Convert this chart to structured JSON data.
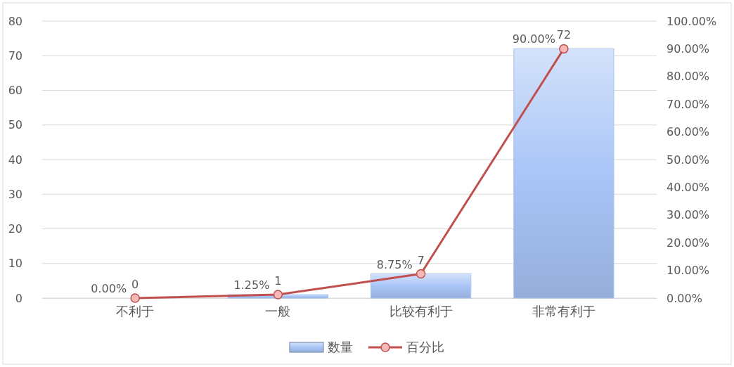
{
  "chart_data": {
    "type": "bar",
    "categories": [
      "不利于",
      "一般",
      "比较有利于",
      "非常有利于"
    ],
    "series": [
      {
        "name": "数量",
        "color": "#a9c5f7",
        "values": [
          0,
          1,
          7,
          72
        ],
        "value_labels": [
          "0",
          "1",
          "7",
          "72"
        ]
      },
      {
        "name": "百分比",
        "type": "line",
        "axis": "y2",
        "color": "#c0504d",
        "values": [
          0,
          1.25,
          8.75,
          90
        ],
        "value_labels": [
          "0.00%",
          "1.25%",
          "8.75%",
          "90.00%"
        ],
        "marker": "circle"
      }
    ],
    "ylim": [
      0,
      80
    ],
    "yticks": [
      0,
      10,
      20,
      30,
      40,
      50,
      60,
      70,
      80
    ],
    "y2lim": [
      0,
      100
    ],
    "y2ticks": [
      {
        "value": 0,
        "label": "0.00%"
      },
      {
        "value": 10,
        "label": "10.00%"
      },
      {
        "value": 20,
        "label": "20.00%"
      },
      {
        "value": 30,
        "label": "30.00%"
      },
      {
        "value": 40,
        "label": "40.00%"
      },
      {
        "value": 50,
        "label": "50.00%"
      },
      {
        "value": 60,
        "label": "60.00%"
      },
      {
        "value": 70,
        "label": "70.00%"
      },
      {
        "value": 80,
        "label": "80.00%"
      },
      {
        "value": 90,
        "label": "90.00%"
      },
      {
        "value": 100,
        "label": "100.00%"
      }
    ],
    "grid": "y",
    "legend": "bottom"
  }
}
